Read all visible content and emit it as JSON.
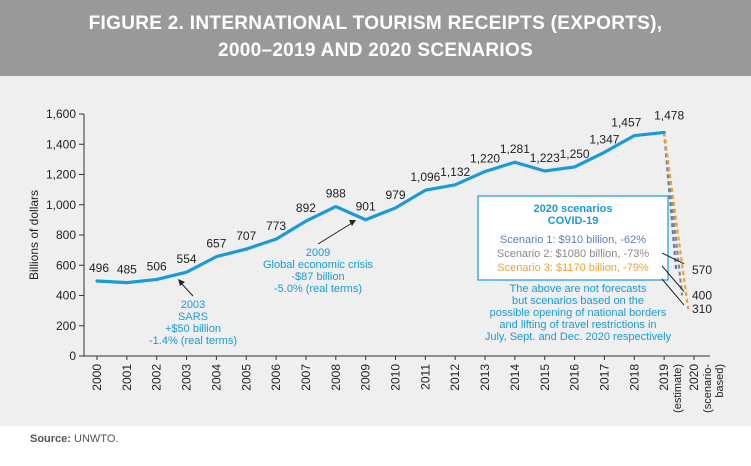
{
  "figure": {
    "title_line1": "FIGURE 2. INTERNATIONAL TOURISM RECEIPTS (EXPORTS),",
    "title_line2": "2000–2019 AND 2020 SCENARIOS",
    "source_label": "Source:",
    "source_value": "UNWTO."
  },
  "colors": {
    "header_bg": "#999999",
    "panel_bg": "#efefef",
    "main_line": "#1a9ad6",
    "scenario1": "#5b7fb8",
    "scenario2": "#888888",
    "scenario3": "#f0a032",
    "annotation_text": "#1a9ad6"
  },
  "chart_data": {
    "type": "line",
    "ylabel": "Billions of dollars",
    "ylim": [
      0,
      1600
    ],
    "yticks": [
      0,
      200,
      400,
      600,
      800,
      1000,
      1200,
      1400,
      1600
    ],
    "ytick_labels": [
      "0",
      "200",
      "400",
      "600",
      "800",
      "1,000",
      "1,200",
      "1,400",
      "1,600"
    ],
    "x_labels": [
      "2000",
      "2001",
      "2002",
      "2003",
      "2004",
      "2005",
      "2006",
      "2007",
      "2008",
      "2009",
      "2010",
      "2011",
      "2012",
      "2013",
      "2014",
      "2015",
      "2016",
      "2017",
      "2018",
      "2019",
      "2020"
    ],
    "x_sublabels": {
      "2019": [
        "(estimate)"
      ],
      "2020": [
        "(scenario-",
        "based)"
      ]
    },
    "series": [
      {
        "x": [
          "2000",
          "2001",
          "2002",
          "2003",
          "2004",
          "2005",
          "2006",
          "2007",
          "2008",
          "2009",
          "2010",
          "2011",
          "2012",
          "2013",
          "2014",
          "2015",
          "2016",
          "2017",
          "2018",
          "2019"
        ],
        "values": [
          496,
          485,
          506,
          554,
          657,
          707,
          773,
          892,
          988,
          901,
          979,
          1096,
          1132,
          1220,
          1281,
          1223,
          1250,
          1347,
          1457,
          1478
        ],
        "labels": [
          "496",
          "485",
          "506",
          "554",
          "657",
          "707",
          "773",
          "892",
          "988",
          "901",
          "979",
          "1,096",
          "1,132",
          "1,220",
          "1,281",
          "1,223",
          "1,250",
          "1,347",
          "1,457",
          "1,478"
        ]
      }
    ],
    "scenarios": [
      {
        "label": "Scenario 1: $910 billion, -62%",
        "end_value": 570,
        "end_label": "570"
      },
      {
        "label": "Scenario 2: $1080 billion, -73%",
        "end_value": 400,
        "end_label": "400"
      },
      {
        "label": "Scenario 3: $1170 billion, -79%",
        "end_value": 310,
        "end_label": "310"
      }
    ],
    "scenario_box": {
      "title_line1": "2020 scenarios",
      "title_line2": "COVID-19"
    },
    "scenario_note": [
      "The above are not forecasts",
      "but scenarios based on the",
      "possible opening of national borders",
      "and lifting of travel restrictions in",
      "July, Sept. and Dec. 2020 respectively"
    ],
    "annotations": [
      {
        "lines": [
          "2003",
          "SARS",
          "+$50 billion",
          "-1.4% (real terms)"
        ]
      },
      {
        "lines": [
          "2009",
          "Global economic crisis",
          "-$87 billion",
          "-5.0% (real terms)"
        ]
      }
    ]
  }
}
